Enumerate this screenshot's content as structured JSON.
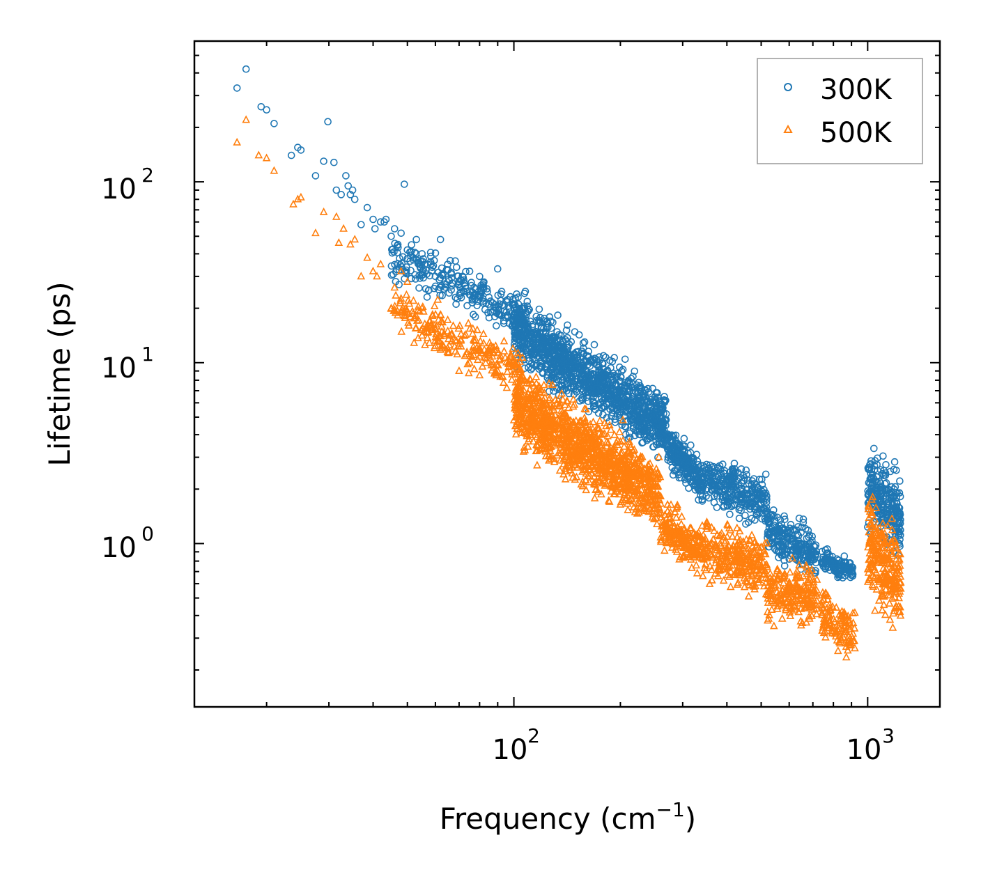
{
  "chart_data": {
    "type": "scatter",
    "title": "",
    "xlabel": "Frequency (cm",
    "xlabel_sup": "−1",
    "xlabel_close": ")",
    "ylabel": "Lifetime (ps)",
    "xscale": "log",
    "yscale": "log",
    "xlim": [
      12.5,
      1600
    ],
    "ylim": [
      0.125,
      600
    ],
    "x_ticks": [
      {
        "value": 100,
        "base": "10",
        "exp": "2"
      },
      {
        "value": 1000,
        "base": "10",
        "exp": "3"
      }
    ],
    "y_ticks": [
      {
        "value": 1,
        "base": "10",
        "exp": "0"
      },
      {
        "value": 10,
        "base": "10",
        "exp": "1"
      },
      {
        "value": 100,
        "base": "10",
        "exp": "2"
      }
    ],
    "legend": {
      "position": "top-right"
    },
    "series": [
      {
        "name": "300K",
        "marker": "circle",
        "color": "#1f77b4",
        "points": [
          [
            16.5,
            330
          ],
          [
            17.5,
            420
          ],
          [
            19.3,
            260
          ],
          [
            20,
            250
          ],
          [
            21,
            210
          ],
          [
            23.5,
            140
          ],
          [
            24.5,
            155
          ],
          [
            25,
            150
          ],
          [
            27.5,
            108
          ],
          [
            29,
            130
          ],
          [
            29.8,
            215
          ],
          [
            31,
            128
          ],
          [
            31.5,
            90
          ],
          [
            32.5,
            85
          ],
          [
            33.5,
            108
          ],
          [
            34,
            95
          ],
          [
            34.5,
            85
          ],
          [
            35,
            90
          ],
          [
            35.5,
            80
          ],
          [
            37,
            58
          ],
          [
            38.5,
            72
          ],
          [
            40,
            62
          ],
          [
            40.5,
            55
          ],
          [
            42,
            60
          ],
          [
            43,
            60
          ],
          [
            43.5,
            62
          ],
          [
            45,
            50
          ],
          [
            46,
            55
          ],
          [
            47,
            45
          ],
          [
            48,
            52
          ],
          [
            49,
            97
          ],
          [
            50,
            42
          ],
          [
            52,
            38
          ],
          [
            53,
            48
          ],
          [
            55,
            40
          ],
          [
            57,
            35
          ],
          [
            60,
            30
          ],
          [
            62,
            48
          ],
          [
            65,
            35
          ],
          [
            70,
            28
          ],
          [
            75,
            32
          ],
          [
            80,
            30
          ],
          [
            85,
            23
          ],
          [
            90,
            33
          ],
          [
            95,
            22
          ],
          [
            100,
            20
          ]
        ],
        "bands": [
          {
            "x0": 45,
            "x1": 110,
            "yc0": 38,
            "yc1": 18,
            "spread": 1.3,
            "n": 260
          },
          {
            "x0": 100,
            "x1": 270,
            "yc0": 15,
            "yc1": 4.5,
            "spread": 1.45,
            "n": 1200
          },
          {
            "x0": 270,
            "x1": 340,
            "yc0": 3.5,
            "yc1": 2.2,
            "spread": 1.25,
            "n": 240
          },
          {
            "x0": 340,
            "x1": 520,
            "yc0": 2.3,
            "yc1": 1.7,
            "spread": 1.35,
            "n": 300
          },
          {
            "x0": 520,
            "x1": 720,
            "yc0": 1.2,
            "yc1": 0.85,
            "spread": 1.3,
            "n": 230
          },
          {
            "x0": 740,
            "x1": 920,
            "yc0": 0.82,
            "yc1": 0.7,
            "spread": 1.15,
            "n": 120
          },
          {
            "x0": 1000,
            "x1": 1240,
            "yc0": 2.0,
            "yc1": 1.4,
            "spread": 1.6,
            "n": 260
          }
        ]
      },
      {
        "name": "500K",
        "marker": "triangle",
        "color": "#ff7f0e",
        "points": [
          [
            16.5,
            165
          ],
          [
            17.5,
            220
          ],
          [
            19,
            140
          ],
          [
            20,
            135
          ],
          [
            21,
            115
          ],
          [
            23.8,
            75
          ],
          [
            24.5,
            80
          ],
          [
            25,
            82
          ],
          [
            27.5,
            52
          ],
          [
            29,
            68
          ],
          [
            31.5,
            64
          ],
          [
            32,
            46
          ],
          [
            33,
            55
          ],
          [
            34.5,
            45
          ],
          [
            35.5,
            48
          ],
          [
            37,
            30
          ],
          [
            38.5,
            38
          ],
          [
            40,
            32
          ],
          [
            41,
            30
          ],
          [
            42,
            35
          ],
          [
            45,
            20
          ],
          [
            46,
            26
          ],
          [
            48,
            32
          ],
          [
            50,
            28
          ],
          [
            52,
            22
          ],
          [
            55,
            20
          ],
          [
            58,
            17
          ],
          [
            62,
            14
          ],
          [
            65,
            12
          ],
          [
            70,
            9
          ],
          [
            75,
            10
          ],
          [
            80,
            12
          ],
          [
            85,
            11
          ],
          [
            90,
            9
          ]
        ],
        "bands": [
          {
            "x0": 45,
            "x1": 105,
            "yc0": 20,
            "yc1": 9,
            "spread": 1.3,
            "n": 240
          },
          {
            "x0": 100,
            "x1": 260,
            "yc0": 6,
            "yc1": 1.8,
            "spread": 1.55,
            "n": 1200
          },
          {
            "x0": 260,
            "x1": 340,
            "yc0": 1.3,
            "yc1": 0.9,
            "spread": 1.3,
            "n": 200
          },
          {
            "x0": 340,
            "x1": 520,
            "yc0": 0.95,
            "yc1": 0.75,
            "spread": 1.45,
            "n": 280
          },
          {
            "x0": 520,
            "x1": 720,
            "yc0": 0.55,
            "yc1": 0.5,
            "spread": 1.4,
            "n": 220
          },
          {
            "x0": 740,
            "x1": 920,
            "yc0": 0.42,
            "yc1": 0.3,
            "spread": 1.35,
            "n": 120
          },
          {
            "x0": 1000,
            "x1": 1240,
            "yc0": 1.0,
            "yc1": 0.6,
            "spread": 1.8,
            "n": 260
          }
        ]
      }
    ]
  }
}
